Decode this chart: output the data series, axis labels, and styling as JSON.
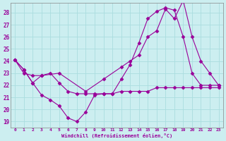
{
  "background_color": "#cceef0",
  "grid_color": "#aadddf",
  "line_color": "#990099",
  "xlim": [
    -0.5,
    23.5
  ],
  "ylim": [
    18.5,
    28.8
  ],
  "yticks": [
    19,
    20,
    21,
    22,
    23,
    24,
    25,
    26,
    27,
    28
  ],
  "xticks": [
    0,
    1,
    2,
    3,
    4,
    5,
    6,
    7,
    8,
    9,
    10,
    11,
    12,
    13,
    14,
    15,
    16,
    17,
    18,
    19,
    20,
    21,
    22,
    23
  ],
  "xlabel": "Windchill (Refroidissement éolien,°C)",
  "line1_x": [
    0,
    1,
    2,
    3,
    4,
    5,
    6,
    7,
    8,
    9,
    10,
    11,
    12,
    13,
    14,
    15,
    16,
    17,
    18,
    19,
    20,
    21,
    22,
    23
  ],
  "line1_y": [
    24.1,
    23.3,
    22.2,
    21.2,
    20.8,
    20.3,
    19.3,
    19.0,
    19.8,
    21.2,
    21.3,
    21.3,
    22.5,
    23.7,
    25.5,
    27.5,
    28.1,
    28.4,
    28.2,
    26.0,
    23.0,
    22.0,
    22.0,
    22.0
  ],
  "line2_x": [
    0,
    1,
    2,
    3,
    4,
    5,
    6,
    7,
    8,
    9,
    10,
    11,
    12,
    13,
    14,
    15,
    16,
    17,
    18,
    19,
    20,
    21,
    22,
    23
  ],
  "line2_y": [
    24.1,
    23.3,
    22.2,
    22.8,
    23.0,
    22.2,
    21.5,
    21.3,
    21.3,
    21.3,
    21.3,
    21.3,
    21.5,
    21.5,
    21.5,
    21.5,
    21.8,
    21.8,
    21.8,
    21.8,
    21.8,
    21.8,
    21.8,
    21.8
  ],
  "line3_x": [
    0,
    1,
    2,
    3,
    5,
    8,
    10,
    12,
    13,
    14,
    15,
    16,
    17,
    18,
    19,
    20,
    21,
    22,
    23
  ],
  "line3_y": [
    24.1,
    23.0,
    22.8,
    22.8,
    23.0,
    21.5,
    22.5,
    23.5,
    24.0,
    24.5,
    26.0,
    26.5,
    28.3,
    27.5,
    29.0,
    26.0,
    24.0,
    23.0,
    22.0
  ]
}
